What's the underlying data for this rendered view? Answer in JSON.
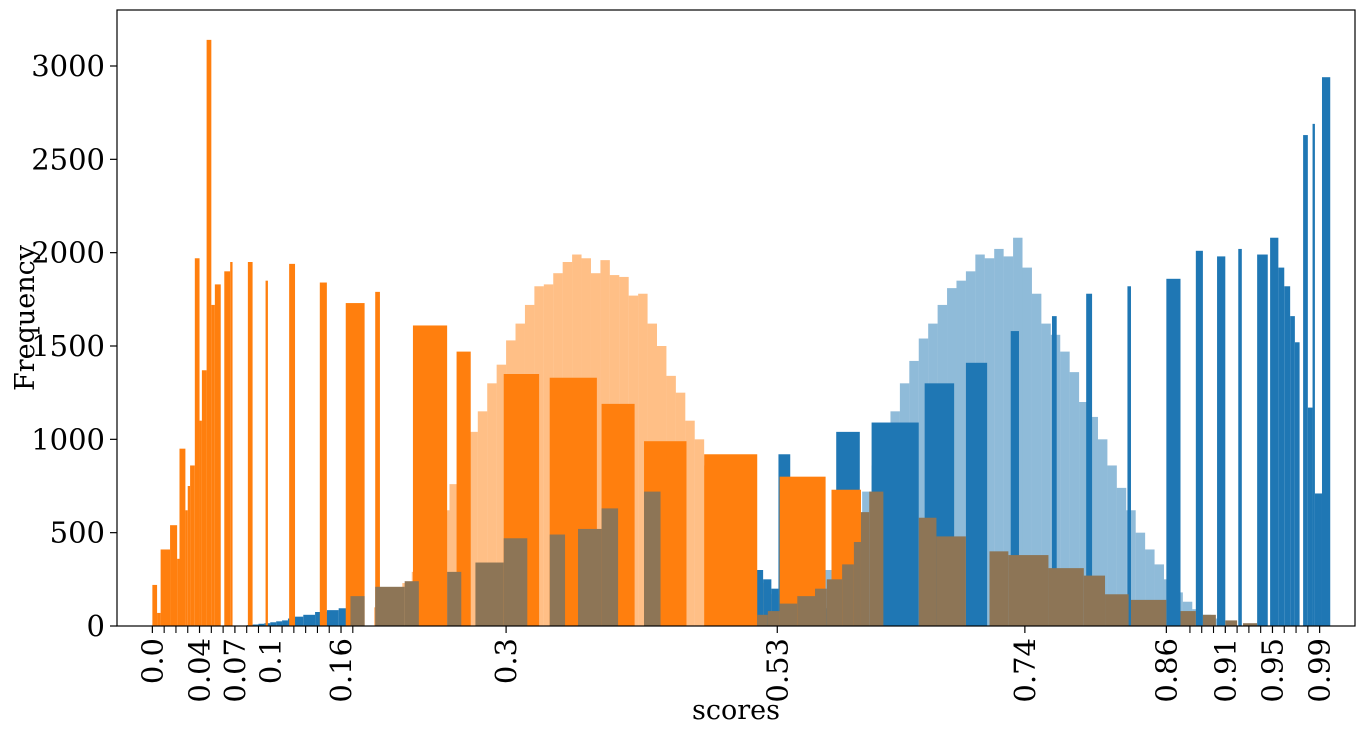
{
  "chart_data": {
    "type": "bar",
    "xlabel": "scores",
    "ylabel": "Frequency",
    "xlim": [
      -0.03,
      1.02
    ],
    "ylim": [
      0,
      3300
    ],
    "x_ticks": [
      0.0,
      0.04,
      0.07,
      0.1,
      0.16,
      0.3,
      0.53,
      0.74,
      0.86,
      0.91,
      0.95,
      0.99
    ],
    "x_tick_labels": [
      "0.0",
      "0.04",
      "0.07",
      "0.1",
      "0.16",
      "0.3",
      "0.53",
      "0.74",
      "0.86",
      "0.91",
      "0.95",
      "0.99"
    ],
    "y_ticks": [
      0,
      500,
      1000,
      1500,
      2000,
      2500,
      3000
    ],
    "y_tick_labels": [
      "0",
      "500",
      "1000",
      "1500",
      "2000",
      "2500",
      "3000"
    ],
    "grid": false,
    "legend": "none",
    "colors": {
      "blue": "#1f77b4",
      "orange": "#ff7f0e",
      "blue_light": "#1f77b4",
      "orange_light": "#ff7f0e",
      "overlap_brown": "#8d7556"
    },
    "series": [
      {
        "color": "orange_light",
        "opacity": 0.5,
        "bins": [
          [
            0.188,
            0.196,
            100
          ],
          [
            0.196,
            0.204,
            140
          ],
          [
            0.204,
            0.212,
            180
          ],
          [
            0.212,
            0.22,
            230
          ],
          [
            0.22,
            0.228,
            290
          ],
          [
            0.228,
            0.236,
            380
          ],
          [
            0.236,
            0.244,
            480
          ],
          [
            0.244,
            0.252,
            620
          ],
          [
            0.252,
            0.26,
            760
          ],
          [
            0.26,
            0.268,
            900
          ],
          [
            0.268,
            0.276,
            1040
          ],
          [
            0.276,
            0.284,
            1150
          ],
          [
            0.284,
            0.292,
            1300
          ],
          [
            0.292,
            0.3,
            1400
          ],
          [
            0.3,
            0.308,
            1530
          ],
          [
            0.308,
            0.316,
            1620
          ],
          [
            0.316,
            0.324,
            1720
          ],
          [
            0.324,
            0.332,
            1820
          ],
          [
            0.332,
            0.34,
            1830
          ],
          [
            0.34,
            0.348,
            1890
          ],
          [
            0.348,
            0.356,
            1950
          ],
          [
            0.356,
            0.364,
            1990
          ],
          [
            0.364,
            0.372,
            1970
          ],
          [
            0.372,
            0.38,
            1890
          ],
          [
            0.38,
            0.388,
            1960
          ],
          [
            0.388,
            0.396,
            1880
          ],
          [
            0.396,
            0.404,
            1870
          ],
          [
            0.404,
            0.412,
            1770
          ],
          [
            0.412,
            0.42,
            1780
          ],
          [
            0.42,
            0.428,
            1620
          ],
          [
            0.428,
            0.436,
            1500
          ],
          [
            0.436,
            0.444,
            1340
          ],
          [
            0.444,
            0.452,
            1250
          ],
          [
            0.452,
            0.46,
            1100
          ],
          [
            0.46,
            0.468,
            1000
          ],
          [
            0.468,
            0.476,
            860
          ],
          [
            0.476,
            0.484,
            720
          ],
          [
            0.484,
            0.492,
            600
          ],
          [
            0.492,
            0.5,
            480
          ],
          [
            0.5,
            0.508,
            390
          ],
          [
            0.508,
            0.516,
            300
          ],
          [
            0.516,
            0.524,
            230
          ],
          [
            0.524,
            0.532,
            170
          ],
          [
            0.532,
            0.54,
            130
          ],
          [
            0.54,
            0.548,
            90
          ],
          [
            0.548,
            0.556,
            60
          ],
          [
            0.556,
            0.564,
            40
          ]
        ]
      },
      {
        "color": "blue_light",
        "opacity": 0.5,
        "bins": [
          [
            0.53,
            0.538,
            60
          ],
          [
            0.538,
            0.546,
            90
          ],
          [
            0.546,
            0.554,
            120
          ],
          [
            0.554,
            0.562,
            170
          ],
          [
            0.562,
            0.57,
            230
          ],
          [
            0.57,
            0.578,
            300
          ],
          [
            0.578,
            0.586,
            390
          ],
          [
            0.586,
            0.594,
            480
          ],
          [
            0.594,
            0.602,
            600
          ],
          [
            0.602,
            0.61,
            720
          ],
          [
            0.61,
            0.618,
            860
          ],
          [
            0.618,
            0.626,
            1000
          ],
          [
            0.626,
            0.634,
            1150
          ],
          [
            0.634,
            0.642,
            1300
          ],
          [
            0.642,
            0.65,
            1420
          ],
          [
            0.65,
            0.658,
            1540
          ],
          [
            0.658,
            0.666,
            1620
          ],
          [
            0.666,
            0.674,
            1720
          ],
          [
            0.674,
            0.682,
            1810
          ],
          [
            0.682,
            0.69,
            1850
          ],
          [
            0.69,
            0.698,
            1900
          ],
          [
            0.698,
            0.706,
            1990
          ],
          [
            0.706,
            0.714,
            1970
          ],
          [
            0.714,
            0.722,
            2020
          ],
          [
            0.722,
            0.73,
            1980
          ],
          [
            0.73,
            0.738,
            2080
          ],
          [
            0.738,
            0.746,
            1920
          ],
          [
            0.746,
            0.754,
            1780
          ],
          [
            0.754,
            0.762,
            1620
          ],
          [
            0.762,
            0.77,
            1560
          ],
          [
            0.77,
            0.778,
            1470
          ],
          [
            0.778,
            0.786,
            1360
          ],
          [
            0.786,
            0.794,
            1200
          ],
          [
            0.794,
            0.802,
            1120
          ],
          [
            0.802,
            0.81,
            1000
          ],
          [
            0.81,
            0.818,
            860
          ],
          [
            0.818,
            0.826,
            740
          ],
          [
            0.826,
            0.834,
            620
          ],
          [
            0.834,
            0.842,
            500
          ],
          [
            0.842,
            0.85,
            410
          ],
          [
            0.85,
            0.858,
            330
          ],
          [
            0.858,
            0.866,
            250
          ],
          [
            0.866,
            0.874,
            180
          ],
          [
            0.874,
            0.882,
            130
          ],
          [
            0.882,
            0.89,
            90
          ],
          [
            0.89,
            0.898,
            60
          ],
          [
            0.898,
            0.906,
            40
          ]
        ]
      },
      {
        "color": "blue",
        "opacity": 1,
        "bins": [
          [
            0.08,
            0.085,
            5
          ],
          [
            0.085,
            0.09,
            8
          ],
          [
            0.09,
            0.095,
            12
          ],
          [
            0.095,
            0.1,
            15
          ],
          [
            0.1,
            0.105,
            20
          ],
          [
            0.105,
            0.11,
            25
          ],
          [
            0.11,
            0.115,
            30
          ],
          [
            0.115,
            0.12,
            40
          ],
          [
            0.12,
            0.128,
            50
          ],
          [
            0.128,
            0.138,
            60
          ],
          [
            0.138,
            0.148,
            75
          ],
          [
            0.148,
            0.158,
            85
          ],
          [
            0.158,
            0.168,
            95
          ],
          [
            0.168,
            0.178,
            120
          ],
          [
            0.47,
            0.482,
            650
          ],
          [
            0.482,
            0.49,
            760
          ],
          [
            0.49,
            0.497,
            510
          ],
          [
            0.497,
            0.508,
            400
          ],
          [
            0.51,
            0.518,
            300
          ],
          [
            0.518,
            0.525,
            250
          ],
          [
            0.525,
            0.531,
            200
          ],
          [
            0.531,
            0.541,
            920
          ],
          [
            0.541,
            0.548,
            140
          ],
          [
            0.548,
            0.556,
            120
          ],
          [
            0.556,
            0.562,
            100
          ],
          [
            0.562,
            0.57,
            95
          ],
          [
            0.57,
            0.58,
            95
          ],
          [
            0.58,
            0.6,
            1040
          ],
          [
            0.61,
            0.65,
            1090
          ],
          [
            0.655,
            0.68,
            1300
          ],
          [
            0.69,
            0.708,
            1410
          ],
          [
            0.728,
            0.735,
            1580
          ],
          [
            0.763,
            0.767,
            1660
          ],
          [
            0.792,
            0.797,
            1780
          ],
          [
            0.827,
            0.83,
            1820
          ],
          [
            0.86,
            0.872,
            1860
          ],
          [
            0.885,
            0.891,
            2010
          ],
          [
            0.903,
            0.91,
            1980
          ],
          [
            0.921,
            0.924,
            2020
          ],
          [
            0.937,
            0.946,
            1990
          ],
          [
            0.948,
            0.955,
            2080
          ],
          [
            0.955,
            0.96,
            1920
          ],
          [
            0.96,
            0.965,
            1820
          ],
          [
            0.965,
            0.969,
            1660
          ],
          [
            0.969,
            0.973,
            1520
          ],
          [
            0.976,
            0.98,
            2630
          ],
          [
            0.98,
            0.984,
            1170
          ],
          [
            0.984,
            0.986,
            2690
          ],
          [
            0.986,
            0.992,
            710
          ],
          [
            0.992,
            0.999,
            2940
          ]
        ]
      },
      {
        "color": "orange",
        "opacity": 1,
        "bins": [
          [
            0.0,
            0.004,
            220
          ],
          [
            0.004,
            0.007,
            70
          ],
          [
            0.007,
            0.015,
            410
          ],
          [
            0.015,
            0.021,
            540
          ],
          [
            0.021,
            0.023,
            360
          ],
          [
            0.023,
            0.028,
            950
          ],
          [
            0.028,
            0.03,
            620
          ],
          [
            0.03,
            0.032,
            750
          ],
          [
            0.032,
            0.036,
            860
          ],
          [
            0.036,
            0.04,
            1970
          ],
          [
            0.04,
            0.042,
            1100
          ],
          [
            0.042,
            0.046,
            1370
          ],
          [
            0.046,
            0.05,
            3140
          ],
          [
            0.05,
            0.053,
            1720
          ],
          [
            0.053,
            0.058,
            1830
          ],
          [
            0.061,
            0.066,
            1900
          ],
          [
            0.066,
            0.068,
            1950
          ],
          [
            0.081,
            0.085,
            1950
          ],
          [
            0.096,
            0.098,
            1850
          ],
          [
            0.116,
            0.121,
            1940
          ],
          [
            0.142,
            0.148,
            1840
          ],
          [
            0.164,
            0.18,
            1730
          ],
          [
            0.189,
            0.193,
            1790
          ],
          [
            0.221,
            0.25,
            1610
          ],
          [
            0.258,
            0.27,
            1470
          ],
          [
            0.298,
            0.328,
            1350
          ],
          [
            0.337,
            0.377,
            1330
          ],
          [
            0.381,
            0.409,
            1190
          ],
          [
            0.417,
            0.453,
            990
          ],
          [
            0.468,
            0.513,
            920
          ],
          [
            0.532,
            0.571,
            800
          ],
          [
            0.576,
            0.601,
            730
          ]
        ]
      },
      {
        "color": "overlap_brown",
        "opacity": 1,
        "bins": [
          [
            0.168,
            0.18,
            160
          ],
          [
            0.189,
            0.214,
            210
          ],
          [
            0.214,
            0.226,
            240
          ],
          [
            0.25,
            0.262,
            290
          ],
          [
            0.274,
            0.298,
            340
          ],
          [
            0.298,
            0.318,
            470
          ],
          [
            0.337,
            0.35,
            490
          ],
          [
            0.361,
            0.381,
            520
          ],
          [
            0.381,
            0.395,
            630
          ],
          [
            0.417,
            0.431,
            720
          ],
          [
            0.513,
            0.522,
            60
          ],
          [
            0.522,
            0.532,
            80
          ],
          [
            0.532,
            0.547,
            120
          ],
          [
            0.547,
            0.562,
            160
          ],
          [
            0.562,
            0.572,
            200
          ],
          [
            0.572,
            0.585,
            250
          ],
          [
            0.585,
            0.595,
            330
          ],
          [
            0.595,
            0.601,
            450
          ],
          [
            0.601,
            0.608,
            610
          ],
          [
            0.608,
            0.62,
            720
          ],
          [
            0.65,
            0.665,
            580
          ],
          [
            0.665,
            0.69,
            480
          ],
          [
            0.71,
            0.726,
            400
          ],
          [
            0.726,
            0.76,
            380
          ],
          [
            0.76,
            0.79,
            310
          ],
          [
            0.79,
            0.808,
            270
          ],
          [
            0.808,
            0.828,
            170
          ],
          [
            0.83,
            0.86,
            140
          ],
          [
            0.872,
            0.885,
            80
          ],
          [
            0.891,
            0.902,
            60
          ],
          [
            0.91,
            0.92,
            30
          ],
          [
            0.925,
            0.937,
            15
          ]
        ]
      }
    ]
  }
}
